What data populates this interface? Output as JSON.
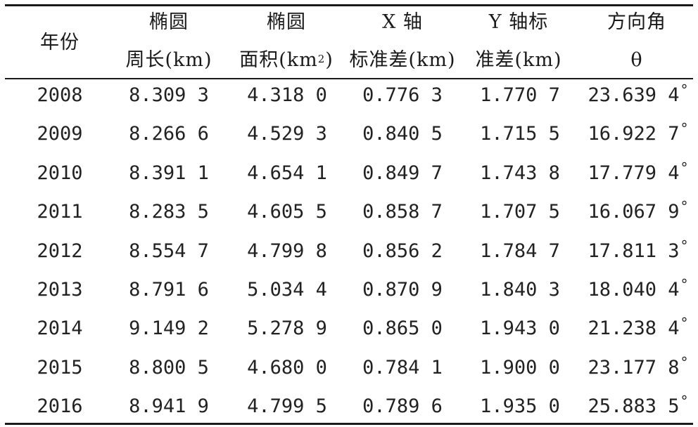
{
  "table": {
    "header": {
      "year": "年份",
      "perimeter_line1": "椭圆",
      "perimeter_line2": "周长(km)",
      "area_line1": "椭圆",
      "area_line2_pre": "面积(km",
      "area_line2_sup": "2",
      "area_line2_post": ")",
      "xstd_line1": "X 轴",
      "xstd_line2": "标准差(km)",
      "ystd_line1": "Y 轴标",
      "ystd_line2": "准差(km)",
      "angle_line1": "方向角",
      "angle_line2": "θ"
    },
    "degree_symbol": "°",
    "rows": [
      {
        "year": "2008",
        "perimeter": "8.309 3",
        "area": "4.318 0",
        "xstd": "0.776 3",
        "ystd": "1.770 7",
        "angle": "23.639 4"
      },
      {
        "year": "2009",
        "perimeter": "8.266 6",
        "area": "4.529 3",
        "xstd": "0.840 5",
        "ystd": "1.715 5",
        "angle": "16.922 7"
      },
      {
        "year": "2010",
        "perimeter": "8.391 1",
        "area": "4.654 1",
        "xstd": "0.849 7",
        "ystd": "1.743 8",
        "angle": "17.779 4"
      },
      {
        "year": "2011",
        "perimeter": "8.283 5",
        "area": "4.605 5",
        "xstd": "0.858 7",
        "ystd": "1.707 5",
        "angle": "16.067 9"
      },
      {
        "year": "2012",
        "perimeter": "8.554 7",
        "area": "4.799 8",
        "xstd": "0.856 2",
        "ystd": "1.784 7",
        "angle": "17.811 3"
      },
      {
        "year": "2013",
        "perimeter": "8.791 6",
        "area": "5.034 4",
        "xstd": "0.870 9",
        "ystd": "1.840 3",
        "angle": "18.040 4"
      },
      {
        "year": "2014",
        "perimeter": "9.149 2",
        "area": "5.278 9",
        "xstd": "0.865 0",
        "ystd": "1.943 0",
        "angle": "21.238 4"
      },
      {
        "year": "2015",
        "perimeter": "8.800 5",
        "area": "4.680 0",
        "xstd": "0.784 1",
        "ystd": "1.900 0",
        "angle": "23.177 8"
      },
      {
        "year": "2016",
        "perimeter": "8.941 9",
        "area": "4.799 5",
        "xstd": "0.789 6",
        "ystd": "1.935 0",
        "angle": "25.883 5"
      }
    ]
  }
}
